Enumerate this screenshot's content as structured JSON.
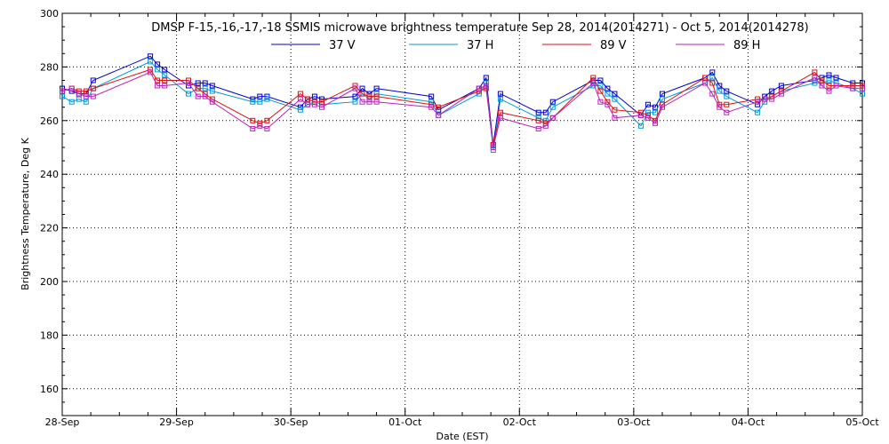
{
  "chart_data": {
    "type": "line",
    "title": "DMSP F-15,-16,-17,-18 SSMIS microwave brightness temperature Sep 28, 2014(2014271) - Oct  5, 2014(2014278)",
    "xlabel": "Date (EST)",
    "ylabel": "Brightness Temperature, Deg K",
    "ylim": [
      150,
      300
    ],
    "yticks": [
      160,
      180,
      200,
      220,
      240,
      260,
      280,
      300
    ],
    "xlim": [
      "2014-09-28T00:00",
      "2014-10-05T00:00"
    ],
    "xtick_labels": [
      "28-Sep",
      "29-Sep",
      "30-Sep",
      "01-Oct",
      "02-Oct",
      "03-Oct",
      "04-Oct",
      "05-Oct"
    ],
    "grid": true,
    "legend_position": "top-center",
    "marker": "square",
    "series": [
      {
        "name": "37 V",
        "color": "#0000cc",
        "points": [
          [
            "2014-09-28T00:00",
            272
          ],
          [
            "2014-09-28T02:00",
            271
          ],
          [
            "2014-09-28T03:30",
            270
          ],
          [
            "2014-09-28T05:00",
            270
          ],
          [
            "2014-09-28T06:30",
            275
          ],
          [
            "2014-09-28T18:30",
            284
          ],
          [
            "2014-09-28T20:00",
            281
          ],
          [
            "2014-09-28T21:30",
            279
          ],
          [
            "2014-09-29T02:30",
            273
          ],
          [
            "2014-09-29T04:30",
            274
          ],
          [
            "2014-09-29T06:00",
            274
          ],
          [
            "2014-09-29T07:30",
            273
          ],
          [
            "2014-09-29T16:00",
            268
          ],
          [
            "2014-09-29T17:30",
            269
          ],
          [
            "2014-09-29T19:00",
            269
          ],
          [
            "2014-09-30T02:00",
            265
          ],
          [
            "2014-09-30T03:30",
            268
          ],
          [
            "2014-09-30T05:00",
            269
          ],
          [
            "2014-09-30T06:30",
            268
          ],
          [
            "2014-09-30T13:30",
            269
          ],
          [
            "2014-09-30T15:00",
            272
          ],
          [
            "2014-09-30T16:30",
            270
          ],
          [
            "2014-09-30T18:00",
            272
          ],
          [
            "2014-10-01T05:30",
            269
          ],
          [
            "2014-10-01T07:00",
            264
          ],
          [
            "2014-10-01T15:30",
            272
          ],
          [
            "2014-10-01T17:00",
            276
          ],
          [
            "2014-10-01T18:30",
            251
          ],
          [
            "2014-10-01T20:00",
            270
          ],
          [
            "2014-10-02T04:00",
            263
          ],
          [
            "2014-10-02T05:30",
            263
          ],
          [
            "2014-10-02T07:00",
            267
          ],
          [
            "2014-10-02T15:30",
            275
          ],
          [
            "2014-10-02T17:00",
            275
          ],
          [
            "2014-10-02T18:30",
            272
          ],
          [
            "2014-10-02T20:00",
            270
          ],
          [
            "2014-10-03T01:30",
            262
          ],
          [
            "2014-10-03T03:00",
            266
          ],
          [
            "2014-10-03T04:30",
            265
          ],
          [
            "2014-10-03T06:00",
            270
          ],
          [
            "2014-10-03T15:00",
            276
          ],
          [
            "2014-10-03T16:30",
            278
          ],
          [
            "2014-10-03T18:00",
            273
          ],
          [
            "2014-10-03T19:30",
            271
          ],
          [
            "2014-10-04T02:00",
            266
          ],
          [
            "2014-10-04T03:30",
            269
          ],
          [
            "2014-10-04T05:00",
            271
          ],
          [
            "2014-10-04T07:00",
            273
          ],
          [
            "2014-10-04T14:00",
            275
          ],
          [
            "2014-10-04T15:30",
            276
          ],
          [
            "2014-10-04T17:00",
            277
          ],
          [
            "2014-10-04T18:30",
            276
          ],
          [
            "2014-10-04T22:00",
            274
          ],
          [
            "2014-10-05T00:00",
            274
          ]
        ]
      },
      {
        "name": "37 H",
        "color": "#0099dd",
        "points": [
          [
            "2014-09-28T00:00",
            269
          ],
          [
            "2014-09-28T02:00",
            267
          ],
          [
            "2014-09-28T03:30",
            268
          ],
          [
            "2014-09-28T05:00",
            267
          ],
          [
            "2014-09-28T06:30",
            272
          ],
          [
            "2014-09-28T18:30",
            282
          ],
          [
            "2014-09-28T20:00",
            279
          ],
          [
            "2014-09-28T21:30",
            277
          ],
          [
            "2014-09-29T02:30",
            270
          ],
          [
            "2014-09-29T04:30",
            272
          ],
          [
            "2014-09-29T06:00",
            272
          ],
          [
            "2014-09-29T07:30",
            271
          ],
          [
            "2014-09-29T16:00",
            267
          ],
          [
            "2014-09-29T17:30",
            267
          ],
          [
            "2014-09-29T19:00",
            268
          ],
          [
            "2014-09-30T02:00",
            264
          ],
          [
            "2014-09-30T03:30",
            266
          ],
          [
            "2014-09-30T05:00",
            267
          ],
          [
            "2014-09-30T06:30",
            266
          ],
          [
            "2014-09-30T13:30",
            267
          ],
          [
            "2014-09-30T15:00",
            270
          ],
          [
            "2014-09-30T16:30",
            268
          ],
          [
            "2014-09-30T18:00",
            270
          ],
          [
            "2014-10-01T05:30",
            267
          ],
          [
            "2014-10-01T07:00",
            262
          ],
          [
            "2014-10-01T15:30",
            270
          ],
          [
            "2014-10-01T17:00",
            274
          ],
          [
            "2014-10-01T18:30",
            249
          ],
          [
            "2014-10-01T20:00",
            268
          ],
          [
            "2014-10-02T04:00",
            261
          ],
          [
            "2014-10-02T05:30",
            260
          ],
          [
            "2014-10-02T07:00",
            265
          ],
          [
            "2014-10-02T15:30",
            273
          ],
          [
            "2014-10-02T17:00",
            273
          ],
          [
            "2014-10-02T18:30",
            270
          ],
          [
            "2014-10-02T20:00",
            268
          ],
          [
            "2014-10-03T01:30",
            258
          ],
          [
            "2014-10-03T03:00",
            263
          ],
          [
            "2014-10-03T04:30",
            263
          ],
          [
            "2014-10-03T06:00",
            268
          ],
          [
            "2014-10-03T15:00",
            274
          ],
          [
            "2014-10-03T16:30",
            276
          ],
          [
            "2014-10-03T18:00",
            271
          ],
          [
            "2014-10-03T19:30",
            269
          ],
          [
            "2014-10-04T02:00",
            263
          ],
          [
            "2014-10-04T03:30",
            267
          ],
          [
            "2014-10-04T05:00",
            269
          ],
          [
            "2014-10-04T07:00",
            271
          ],
          [
            "2014-10-04T14:00",
            274
          ],
          [
            "2014-10-04T15:30",
            274
          ],
          [
            "2014-10-04T17:00",
            275
          ],
          [
            "2014-10-04T18:30",
            274
          ],
          [
            "2014-10-04T22:00",
            272
          ],
          [
            "2014-10-05T00:00",
            270
          ]
        ]
      },
      {
        "name": "89 V",
        "color": "#dd1111",
        "points": [
          [
            "2014-09-28T00:00",
            271
          ],
          [
            "2014-09-28T02:00",
            272
          ],
          [
            "2014-09-28T03:30",
            271
          ],
          [
            "2014-09-28T05:00",
            271
          ],
          [
            "2014-09-28T06:30",
            272
          ],
          [
            "2014-09-28T18:30",
            279
          ],
          [
            "2014-09-28T20:00",
            275
          ],
          [
            "2014-09-28T21:30",
            275
          ],
          [
            "2014-09-29T02:30",
            275
          ],
          [
            "2014-09-29T04:30",
            272
          ],
          [
            "2014-09-29T06:00",
            270
          ],
          [
            "2014-09-29T07:30",
            268
          ],
          [
            "2014-09-29T16:00",
            260
          ],
          [
            "2014-09-29T17:30",
            259
          ],
          [
            "2014-09-29T19:00",
            260
          ],
          [
            "2014-09-30T02:00",
            270
          ],
          [
            "2014-09-30T03:30",
            268
          ],
          [
            "2014-09-30T05:00",
            267
          ],
          [
            "2014-09-30T06:30",
            267
          ],
          [
            "2014-09-30T13:30",
            273
          ],
          [
            "2014-09-30T15:00",
            270
          ],
          [
            "2014-09-30T16:30",
            269
          ],
          [
            "2014-09-30T18:00",
            269
          ],
          [
            "2014-10-01T05:30",
            266
          ],
          [
            "2014-10-01T07:00",
            265
          ],
          [
            "2014-10-01T15:30",
            271
          ],
          [
            "2014-10-01T17:00",
            272
          ],
          [
            "2014-10-01T18:30",
            251
          ],
          [
            "2014-10-01T20:00",
            263
          ],
          [
            "2014-10-02T04:00",
            260
          ],
          [
            "2014-10-02T05:30",
            259
          ],
          [
            "2014-10-02T07:00",
            261
          ],
          [
            "2014-10-02T15:30",
            276
          ],
          [
            "2014-10-02T17:00",
            271
          ],
          [
            "2014-10-02T18:30",
            267
          ],
          [
            "2014-10-02T20:00",
            264
          ],
          [
            "2014-10-03T01:30",
            263
          ],
          [
            "2014-10-03T03:00",
            262
          ],
          [
            "2014-10-03T04:30",
            260
          ],
          [
            "2014-10-03T06:00",
            266
          ],
          [
            "2014-10-03T15:00",
            276
          ],
          [
            "2014-10-03T16:30",
            274
          ],
          [
            "2014-10-03T18:00",
            266
          ],
          [
            "2014-10-03T19:30",
            266
          ],
          [
            "2014-10-04T02:00",
            268
          ],
          [
            "2014-10-04T03:30",
            268
          ],
          [
            "2014-10-04T05:00",
            269
          ],
          [
            "2014-10-04T07:00",
            271
          ],
          [
            "2014-10-04T14:00",
            278
          ],
          [
            "2014-10-04T15:30",
            275
          ],
          [
            "2014-10-04T17:00",
            273
          ],
          [
            "2014-10-04T18:30",
            273
          ],
          [
            "2014-10-04T22:00",
            273
          ],
          [
            "2014-10-05T00:00",
            273
          ]
        ]
      },
      {
        "name": "89 H",
        "color": "#bb22bb",
        "points": [
          [
            "2014-09-28T00:00",
            271
          ],
          [
            "2014-09-28T02:00",
            272
          ],
          [
            "2014-09-28T03:30",
            270
          ],
          [
            "2014-09-28T05:00",
            269
          ],
          [
            "2014-09-28T06:30",
            269
          ],
          [
            "2014-09-28T18:30",
            278
          ],
          [
            "2014-09-28T20:00",
            273
          ],
          [
            "2014-09-28T21:30",
            273
          ],
          [
            "2014-09-29T02:30",
            274
          ],
          [
            "2014-09-29T04:30",
            269
          ],
          [
            "2014-09-29T06:00",
            269
          ],
          [
            "2014-09-29T07:30",
            267
          ],
          [
            "2014-09-29T16:00",
            257
          ],
          [
            "2014-09-29T17:30",
            258
          ],
          [
            "2014-09-29T19:00",
            257
          ],
          [
            "2014-09-30T02:00",
            268
          ],
          [
            "2014-09-30T03:30",
            266
          ],
          [
            "2014-09-30T05:00",
            266
          ],
          [
            "2014-09-30T06:30",
            265
          ],
          [
            "2014-09-30T13:30",
            272
          ],
          [
            "2014-09-30T15:00",
            267
          ],
          [
            "2014-09-30T16:30",
            267
          ],
          [
            "2014-09-30T18:00",
            267
          ],
          [
            "2014-10-01T05:30",
            265
          ],
          [
            "2014-10-01T07:00",
            262
          ],
          [
            "2014-10-01T15:30",
            272
          ],
          [
            "2014-10-01T17:00",
            273
          ],
          [
            "2014-10-01T18:30",
            250
          ],
          [
            "2014-10-01T20:00",
            261
          ],
          [
            "2014-10-02T04:00",
            257
          ],
          [
            "2014-10-02T05:30",
            258
          ],
          [
            "2014-10-02T07:00",
            261
          ],
          [
            "2014-10-02T15:30",
            274
          ],
          [
            "2014-10-02T17:00",
            267
          ],
          [
            "2014-10-02T18:30",
            266
          ],
          [
            "2014-10-02T20:00",
            261
          ],
          [
            "2014-10-03T01:30",
            262
          ],
          [
            "2014-10-03T03:00",
            261
          ],
          [
            "2014-10-03T04:30",
            259
          ],
          [
            "2014-10-03T06:00",
            265
          ],
          [
            "2014-10-03T15:00",
            274
          ],
          [
            "2014-10-03T16:30",
            270
          ],
          [
            "2014-10-03T18:00",
            265
          ],
          [
            "2014-10-03T19:30",
            263
          ],
          [
            "2014-10-04T02:00",
            267
          ],
          [
            "2014-10-04T03:30",
            268
          ],
          [
            "2014-10-04T05:00",
            268
          ],
          [
            "2014-10-04T07:00",
            270
          ],
          [
            "2014-10-04T14:00",
            276
          ],
          [
            "2014-10-04T15:30",
            273
          ],
          [
            "2014-10-04T17:00",
            271
          ],
          [
            "2014-10-04T18:30",
            273
          ],
          [
            "2014-10-04T22:00",
            272
          ],
          [
            "2014-10-05T00:00",
            272
          ]
        ]
      }
    ]
  }
}
